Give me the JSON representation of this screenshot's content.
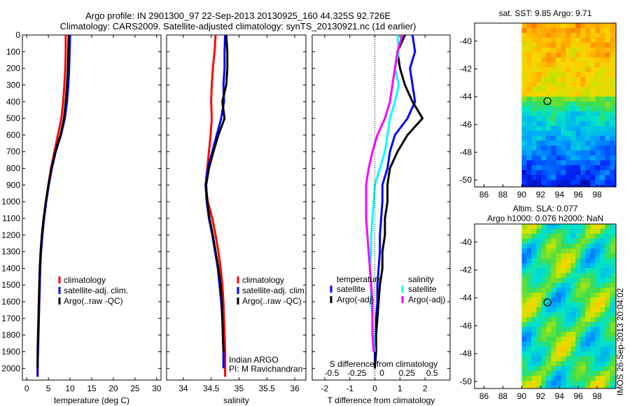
{
  "titles": {
    "line1": "Argo profile: IN 2901300_97 22-Sep-2013 20130925_160 44.325S 92.726E",
    "line2": "Climatology: CARS2009. Satellite-adjusted climatology: synTS_20130921.nc (1d earlier)"
  },
  "depth_ticks": [
    0,
    100,
    200,
    300,
    400,
    500,
    600,
    700,
    800,
    900,
    1000,
    1100,
    1200,
    1300,
    1400,
    1500,
    1600,
    1700,
    1800,
    1900,
    2000
  ],
  "side_text": "IMOS 26-Sep-2013 20:04:02",
  "chart_data": [
    {
      "type": "line",
      "panel": "temperature",
      "xlabel": "temperature (deg C)",
      "ylabel": "",
      "xlim": [
        -1,
        31
      ],
      "ylim": [
        2070,
        0
      ],
      "xticks": [
        0,
        5,
        10,
        15,
        20,
        25,
        30
      ],
      "x_ticklabels": [
        "0",
        "5",
        "10",
        "15",
        "20",
        "25",
        "30"
      ],
      "legend": [
        "climatology",
        "satellite-adj. clim.",
        "Argo(..raw -QC)"
      ],
      "series": [
        {
          "name": "climatology",
          "color": "#ff0000",
          "x": [
            9.0,
            9.0,
            8.9,
            8.7,
            8.4,
            8.0,
            7.2,
            6.4,
            5.6,
            5.0,
            4.5,
            4.0,
            3.6,
            3.3,
            3.1,
            3.0,
            2.9,
            2.8,
            2.7,
            2.6,
            2.5,
            2.5
          ],
          "y": [
            0,
            100,
            200,
            300,
            400,
            500,
            600,
            700,
            800,
            900,
            1000,
            1100,
            1200,
            1300,
            1400,
            1500,
            1600,
            1700,
            1800,
            1900,
            2000,
            2050
          ]
        },
        {
          "name": "satellite-adj. clim.",
          "color": "#0000ff",
          "x": [
            10.0,
            9.9,
            9.8,
            9.6,
            9.3,
            8.8,
            7.9,
            6.7,
            5.8,
            5.1,
            4.5,
            4.0,
            3.6,
            3.3,
            3.1,
            3.0,
            2.9,
            2.8,
            2.7,
            2.6,
            2.5,
            2.5
          ],
          "y": [
            0,
            100,
            200,
            300,
            400,
            500,
            600,
            700,
            800,
            900,
            1000,
            1100,
            1200,
            1300,
            1400,
            1500,
            1600,
            1700,
            1800,
            1900,
            2000,
            2050
          ]
        },
        {
          "name": "Argo(..raw -QC)",
          "color": "#000000",
          "x": [
            9.7,
            9.6,
            9.5,
            9.3,
            9.0,
            8.6,
            7.8,
            6.6,
            5.7,
            5.0,
            4.4,
            3.9,
            3.5,
            3.2,
            3.0,
            2.9,
            2.8,
            2.7,
            2.6,
            2.5,
            2.5
          ],
          "y": [
            0,
            100,
            200,
            300,
            400,
            500,
            600,
            700,
            800,
            900,
            1000,
            1100,
            1200,
            1300,
            1400,
            1500,
            1600,
            1700,
            1800,
            1900,
            2000
          ]
        }
      ]
    },
    {
      "type": "line",
      "panel": "salinity",
      "xlabel": "salinity",
      "ylabel": "",
      "xlim": [
        33.7,
        36.2
      ],
      "ylim": [
        2070,
        0
      ],
      "xticks": [
        34,
        34.5,
        35,
        35.5,
        36
      ],
      "x_ticklabels": [
        "34",
        "34.5",
        "35",
        "35.5",
        "36"
      ],
      "legend": [
        "climatology",
        "satellite-adj. clim.",
        "Argo(..raw -QC)"
      ],
      "annotation_lines": [
        "Indian ARGO",
        "PI: M Ravichandran"
      ],
      "series": [
        {
          "name": "climatology",
          "color": "#ff0000",
          "x": [
            34.58,
            34.56,
            34.53,
            34.51,
            34.5,
            34.51,
            34.49,
            34.46,
            34.43,
            34.4,
            34.44,
            34.52,
            34.58,
            34.63,
            34.67,
            34.7,
            34.72,
            34.73,
            34.74,
            34.75,
            34.75,
            34.75
          ],
          "y": [
            0,
            100,
            200,
            300,
            400,
            500,
            600,
            700,
            800,
            900,
            1000,
            1100,
            1200,
            1300,
            1400,
            1500,
            1600,
            1700,
            1800,
            1900,
            2000,
            2050
          ]
        },
        {
          "name": "satellite-adj. clim.",
          "color": "#0000ff",
          "x": [
            34.75,
            34.74,
            34.74,
            34.72,
            34.73,
            34.68,
            34.6,
            34.52,
            34.44,
            34.4,
            34.42,
            34.46,
            34.52,
            34.57,
            34.62,
            34.65,
            34.68,
            34.7,
            34.71,
            34.72,
            34.72
          ],
          "y": [
            0,
            100,
            200,
            300,
            400,
            500,
            600,
            700,
            800,
            900,
            1000,
            1100,
            1200,
            1300,
            1400,
            1500,
            1600,
            1700,
            1800,
            1900,
            2000
          ]
        },
        {
          "name": "Argo(..raw -QC)",
          "color": "#000000",
          "x": [
            34.77,
            34.79,
            34.79,
            34.77,
            34.7,
            34.74,
            34.63,
            34.54,
            34.46,
            34.41,
            34.43,
            34.47,
            34.53,
            34.58,
            34.63,
            34.67,
            34.69,
            34.7,
            34.71,
            34.72
          ],
          "y": [
            0,
            100,
            200,
            300,
            400,
            500,
            600,
            700,
            800,
            900,
            1000,
            1100,
            1200,
            1300,
            1400,
            1500,
            1600,
            1700,
            1800,
            1900
          ]
        }
      ]
    },
    {
      "type": "line",
      "panel": "difference",
      "xlabel": "T difference from climatology",
      "top_axis_label": "S difference from climatology",
      "xlim": [
        -2.5,
        3.0
      ],
      "ylim": [
        2070,
        0
      ],
      "xticks": [
        -2,
        -1,
        0,
        1,
        2
      ],
      "x_ticklabels": [
        "-2",
        "-1",
        "0",
        "1",
        "2"
      ],
      "top_ticklabels": [
        "-0.5",
        "-0.25",
        "0",
        "0.25",
        "0.5"
      ],
      "legend_headers": [
        "temperature",
        "salinity"
      ],
      "legend": [
        "satellite",
        "Argo(-adj)",
        "satellite",
        "Argo(-adj)"
      ],
      "series": [
        {
          "name": "satellite",
          "group": "temperature",
          "color": "#0000ff",
          "x": [
            1.5,
            1.6,
            1.4,
            1.5,
            1.6,
            1.3,
            0.8,
            0.6,
            0.5,
            0.3,
            0.3,
            0.25,
            0.2,
            0.2,
            0.15,
            0.1,
            0.1,
            0.05,
            0.05,
            0.0,
            0.0
          ],
          "y": [
            0,
            100,
            200,
            300,
            400,
            500,
            600,
            700,
            800,
            900,
            1000,
            1100,
            1200,
            1300,
            1400,
            1500,
            1600,
            1700,
            1800,
            1900,
            2000
          ]
        },
        {
          "name": "Argo(-adj)",
          "group": "temperature",
          "color": "#000000",
          "x": [
            1.2,
            0.9,
            1.0,
            1.2,
            1.5,
            1.9,
            1.3,
            0.9,
            0.6,
            0.5,
            0.5,
            0.4,
            0.4,
            0.3,
            0.3,
            0.2,
            0.15,
            0.1,
            0.05,
            0.05,
            0.0
          ],
          "y": [
            0,
            100,
            200,
            300,
            400,
            500,
            600,
            700,
            800,
            900,
            1000,
            1100,
            1200,
            1300,
            1400,
            1500,
            1600,
            1700,
            1800,
            1900,
            2000
          ]
        },
        {
          "name": "satellite",
          "group": "salinity",
          "color": "#00ffff",
          "x": [
            0.9,
            0.95,
            0.8,
            0.95,
            0.8,
            0.6,
            0.5,
            0.4,
            0.2,
            0.0,
            -0.05,
            -0.1,
            -0.15,
            -0.15,
            -0.2,
            -0.15,
            -0.15,
            -0.1,
            -0.05,
            0.0
          ],
          "y": [
            0,
            100,
            200,
            300,
            400,
            500,
            600,
            700,
            800,
            900,
            1000,
            1100,
            1200,
            1300,
            1400,
            1500,
            1600,
            1700,
            1800,
            1900
          ]
        },
        {
          "name": "Argo(-adj)",
          "group": "salinity",
          "color": "#ff00ff",
          "x": [
            1.1,
            0.9,
            0.8,
            0.7,
            0.6,
            0.4,
            0.1,
            -0.1,
            -0.25,
            -0.35,
            -0.35,
            -0.35,
            -0.3,
            -0.25,
            -0.2,
            -0.15,
            -0.1,
            -0.1,
            -0.1,
            -0.05
          ],
          "y": [
            0,
            100,
            200,
            300,
            400,
            500,
            600,
            700,
            800,
            900,
            1000,
            1100,
            1200,
            1300,
            1400,
            1500,
            1600,
            1700,
            1800,
            1900
          ]
        }
      ]
    },
    {
      "type": "heatmap",
      "panel": "sst-map",
      "title": "sat. SST: 9.85 Argo: 9.71",
      "xticks": [
        86,
        88,
        90,
        92,
        94,
        96,
        98
      ],
      "yticks": [
        -40,
        -42,
        -44,
        -46,
        -48,
        -50
      ],
      "xlim": [
        85,
        100
      ],
      "ylim": [
        -50.5,
        -38.7
      ],
      "data_xmin": 90,
      "marker": {
        "lon": 92.726,
        "lat": -44.325
      }
    },
    {
      "type": "heatmap",
      "panel": "sla-map",
      "title_lines": [
        "Altim. SLA: 0.077",
        "Argo h1000: 0.076 h2000: NaN"
      ],
      "xticks": [
        86,
        88,
        90,
        92,
        94,
        96,
        98
      ],
      "yticks": [
        -40,
        -42,
        -44,
        -46,
        -48,
        -50
      ],
      "xlim": [
        85,
        100
      ],
      "ylim": [
        -50.5,
        -38.7
      ],
      "data_xmin": 90,
      "marker": {
        "lon": 92.726,
        "lat": -44.325
      }
    }
  ]
}
